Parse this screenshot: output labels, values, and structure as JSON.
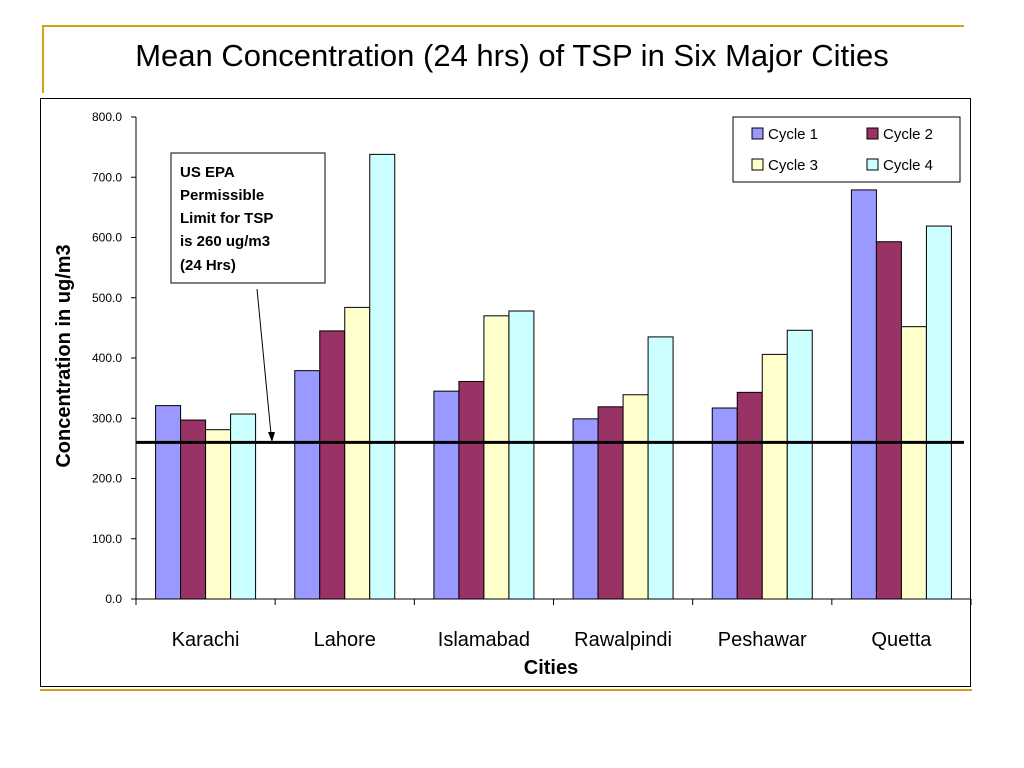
{
  "slide": {
    "title": "Mean Concentration (24 hrs) of  TSP in Six Major Cities"
  },
  "annotation": {
    "lines": [
      "US EPA",
      "Permissible",
      "Limit for TSP",
      "is 260 ug/m3",
      "(24 Hrs)"
    ]
  },
  "colors": {
    "cycle1": "#9999FF",
    "cycle2": "#993366",
    "cycle3": "#FFFFCC",
    "cycle4": "#CCFFFF",
    "limit_line": "#000000",
    "accent": "#D4A017"
  },
  "chart_data": {
    "type": "bar",
    "title": "Mean Concentration (24 hrs) of  TSP in Six Major Cities",
    "xlabel": "Cities",
    "ylabel": "Concentration in ug/m3",
    "ylim": [
      0,
      800
    ],
    "yticks": [
      "0.0",
      "100.0",
      "200.0",
      "300.0",
      "400.0",
      "500.0",
      "600.0",
      "700.0",
      "800.0"
    ],
    "categories": [
      "Karachi",
      "Lahore",
      "Islamabad",
      "Rawalpindi",
      "Peshawar",
      "Quetta"
    ],
    "series": [
      {
        "name": "Cycle 1",
        "values": [
          321,
          379,
          345,
          299,
          317,
          679
        ]
      },
      {
        "name": "Cycle 2",
        "values": [
          297,
          445,
          361,
          319,
          343,
          593
        ]
      },
      {
        "name": "Cycle 3",
        "values": [
          281,
          484,
          470,
          339,
          406,
          452
        ]
      },
      {
        "name": "Cycle 4",
        "values": [
          307,
          738,
          478,
          435,
          446,
          619
        ]
      }
    ],
    "reference_line": 260,
    "grid": false,
    "legend_position": "top-right"
  }
}
